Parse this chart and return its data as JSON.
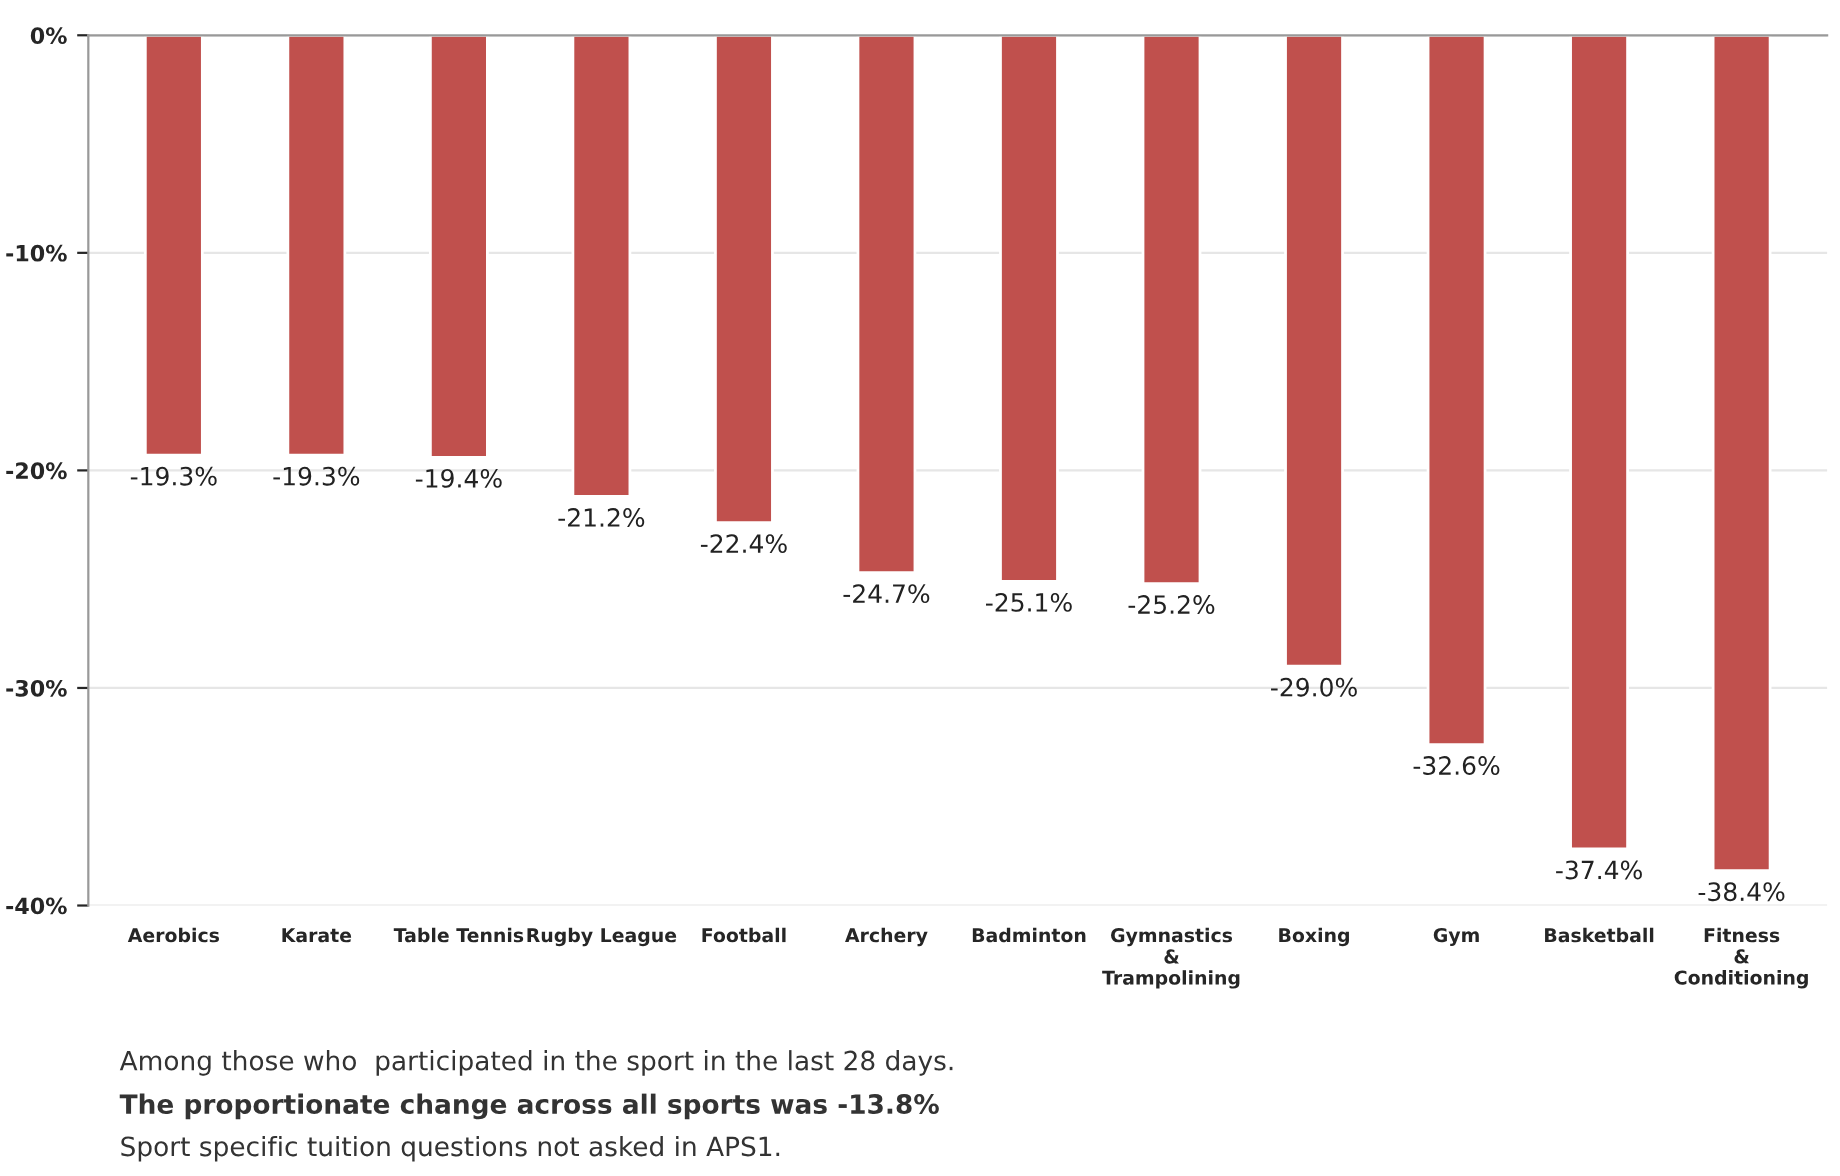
{
  "chart_data": {
    "type": "bar",
    "categories": [
      "Aerobics",
      "Karate",
      "Table Tennis",
      "Rugby League",
      "Football",
      "Archery",
      "Badminton",
      "Gymnastics & Trampolining",
      "Boxing",
      "Gym",
      "Basketball",
      "Fitness & Conditioning"
    ],
    "values": [
      -19.3,
      -19.3,
      -19.4,
      -21.2,
      -22.4,
      -24.7,
      -25.1,
      -25.2,
      -29.0,
      -32.6,
      -37.4,
      -38.4
    ],
    "value_labels": [
      "-19.3%",
      "-19.3%",
      "-19.4%",
      "-21.2%",
      "-22.4%",
      "-24.7%",
      "-25.1%",
      "-25.2%",
      "-29.0%",
      "-32.6%",
      "-37.4%",
      "-38.4%"
    ],
    "color": "#c0504d",
    "ylim": [
      -40,
      0
    ],
    "yticks": [
      {
        "value": 0,
        "label": "0%"
      },
      {
        "value": -10,
        "label": "-10%"
      },
      {
        "value": -20,
        "label": "-20%"
      },
      {
        "value": -30,
        "label": "-30%"
      },
      {
        "value": -40,
        "label": "-40%"
      }
    ],
    "grid": "y",
    "annotations": [
      "Among those who  participated in the sport in the last 28 days.",
      "The proportionate change across all sports was -13.8%",
      "Sport specific tuition questions not asked in APS1."
    ]
  }
}
